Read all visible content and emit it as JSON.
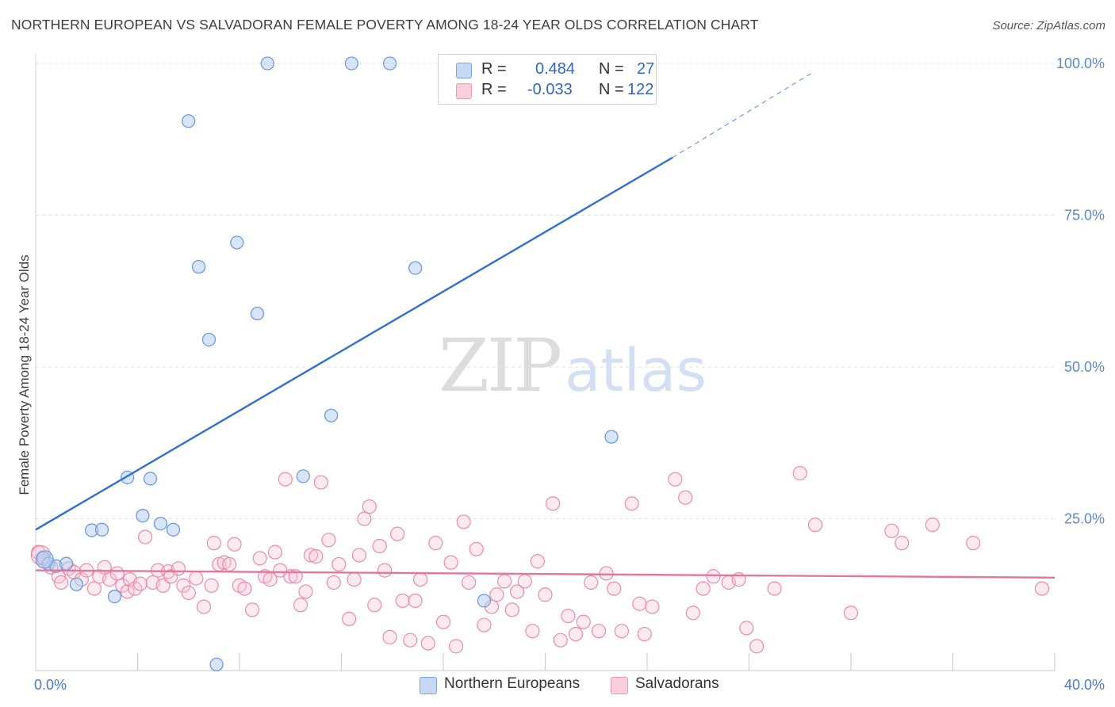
{
  "title": "NORTHERN EUROPEAN VS SALVADORAN FEMALE POVERTY AMONG 18-24 YEAR OLDS CORRELATION CHART",
  "source": "Source: ZipAtlas.com",
  "watermark": {
    "zip": "ZIP",
    "atlas": "atlas"
  },
  "colors": {
    "blue_fill": "#b8d0f2",
    "blue_stroke": "#6f9ad8",
    "blue_line": "#2f6fcf",
    "pink_fill": "#f8c3d3",
    "pink_stroke": "#e98aa8",
    "pink_line": "#e4769c"
  },
  "legend": {
    "r_label": "R =",
    "n_label": "N =",
    "series": [
      {
        "r": "0.484",
        "n": "27"
      },
      {
        "r": "-0.033",
        "n": "122"
      }
    ]
  },
  "bottom_legend": [
    "Northern Europeans",
    "Salvadorans"
  ],
  "chart_data": {
    "type": "scatter",
    "title": "NORTHERN EUROPEAN VS SALVADORAN FEMALE POVERTY AMONG 18-24 YEAR OLDS CORRELATION CHART",
    "xlabel": "",
    "ylabel": "Female Poverty Among 18-24 Year Olds",
    "xlim": [
      0,
      40
    ],
    "ylim": [
      0,
      100
    ],
    "x_tick_labels": [
      "0.0%",
      "40.0%"
    ],
    "y_tick_labels": [
      "25.0%",
      "50.0%",
      "75.0%",
      "100.0%"
    ],
    "y_ticks": [
      25,
      50,
      75,
      100
    ],
    "grid": true,
    "legend_position": "top-center",
    "series": [
      {
        "name": "Northern Europeans",
        "color": "#6f9ad8",
        "r": 0.484,
        "n": 27,
        "trend": {
          "x": [
            0,
            25
          ],
          "y": [
            23.2,
            84.5
          ],
          "dashed_to": [
            30.5,
            98.5
          ]
        },
        "points": [
          [
            0.3,
            18.5
          ],
          [
            0.5,
            17.6
          ],
          [
            0.8,
            17.2
          ],
          [
            1.2,
            17.6
          ],
          [
            1.6,
            14.2
          ],
          [
            2.2,
            23.1
          ],
          [
            2.6,
            23.2
          ],
          [
            3.1,
            12.2
          ],
          [
            3.6,
            31.8
          ],
          [
            4.2,
            25.5
          ],
          [
            4.5,
            31.6
          ],
          [
            4.9,
            24.2
          ],
          [
            5.4,
            23.2
          ],
          [
            6.0,
            90.5
          ],
          [
            6.4,
            66.5
          ],
          [
            6.8,
            54.5
          ],
          [
            7.1,
            1.0
          ],
          [
            7.9,
            70.5
          ],
          [
            8.7,
            58.8
          ],
          [
            9.1,
            100
          ],
          [
            10.5,
            32.0
          ],
          [
            11.6,
            42.0
          ],
          [
            12.4,
            100
          ],
          [
            13.9,
            100
          ],
          [
            14.9,
            66.3
          ],
          [
            17.6,
            11.5
          ],
          [
            22.6,
            38.5
          ]
        ]
      },
      {
        "name": "Salvadorans",
        "color": "#e98aa8",
        "r": -0.033,
        "n": 122,
        "trend": {
          "x": [
            0,
            40
          ],
          "y": [
            16.5,
            15.3
          ]
        },
        "points": [
          [
            0.1,
            19.5
          ],
          [
            0.3,
            18.0
          ],
          [
            0.6,
            17.0
          ],
          [
            0.9,
            15.5
          ],
          [
            1.0,
            14.5
          ],
          [
            1.3,
            16.8
          ],
          [
            1.5,
            16.2
          ],
          [
            1.8,
            15.0
          ],
          [
            2.0,
            16.5
          ],
          [
            2.3,
            13.5
          ],
          [
            2.5,
            15.5
          ],
          [
            2.7,
            17.0
          ],
          [
            2.9,
            15.0
          ],
          [
            3.2,
            16.0
          ],
          [
            3.4,
            14.0
          ],
          [
            3.6,
            13.0
          ],
          [
            3.7,
            15.0
          ],
          [
            3.9,
            13.5
          ],
          [
            4.1,
            14.3
          ],
          [
            4.3,
            22.0
          ],
          [
            4.6,
            14.5
          ],
          [
            4.8,
            16.5
          ],
          [
            5.0,
            14.0
          ],
          [
            5.2,
            16.3
          ],
          [
            5.3,
            15.5
          ],
          [
            5.6,
            16.8
          ],
          [
            5.8,
            14.0
          ],
          [
            6.0,
            12.8
          ],
          [
            6.3,
            15.2
          ],
          [
            6.6,
            10.5
          ],
          [
            6.9,
            14.0
          ],
          [
            7.0,
            21.0
          ],
          [
            7.2,
            17.5
          ],
          [
            7.4,
            17.8
          ],
          [
            7.6,
            17.5
          ],
          [
            7.8,
            20.8
          ],
          [
            8.0,
            14.0
          ],
          [
            8.2,
            13.5
          ],
          [
            8.5,
            10.0
          ],
          [
            8.8,
            18.5
          ],
          [
            9.0,
            15.5
          ],
          [
            9.2,
            15.0
          ],
          [
            9.4,
            19.5
          ],
          [
            9.6,
            16.5
          ],
          [
            9.8,
            31.5
          ],
          [
            10.0,
            15.5
          ],
          [
            10.2,
            15.5
          ],
          [
            10.4,
            10.8
          ],
          [
            10.6,
            13.0
          ],
          [
            10.8,
            19.0
          ],
          [
            11.0,
            18.8
          ],
          [
            11.2,
            31.0
          ],
          [
            11.5,
            21.5
          ],
          [
            11.7,
            14.5
          ],
          [
            11.9,
            17.5
          ],
          [
            12.3,
            8.5
          ],
          [
            12.5,
            15.0
          ],
          [
            12.7,
            19.0
          ],
          [
            12.9,
            25.0
          ],
          [
            13.1,
            27.0
          ],
          [
            13.3,
            10.8
          ],
          [
            13.5,
            20.5
          ],
          [
            13.7,
            16.5
          ],
          [
            13.9,
            5.5
          ],
          [
            14.2,
            22.5
          ],
          [
            14.4,
            11.5
          ],
          [
            14.7,
            5.0
          ],
          [
            14.9,
            11.5
          ],
          [
            15.1,
            15.0
          ],
          [
            15.4,
            4.5
          ],
          [
            15.7,
            21.0
          ],
          [
            16.0,
            8.0
          ],
          [
            16.3,
            17.8
          ],
          [
            16.5,
            4.0
          ],
          [
            16.8,
            24.5
          ],
          [
            17.0,
            14.5
          ],
          [
            17.3,
            20.0
          ],
          [
            17.6,
            7.5
          ],
          [
            17.9,
            10.5
          ],
          [
            18.1,
            12.5
          ],
          [
            18.4,
            14.7
          ],
          [
            18.7,
            10.0
          ],
          [
            18.9,
            13.0
          ],
          [
            19.2,
            14.7
          ],
          [
            19.5,
            6.5
          ],
          [
            19.7,
            18.0
          ],
          [
            20.0,
            12.5
          ],
          [
            20.3,
            27.5
          ],
          [
            20.6,
            5.0
          ],
          [
            20.9,
            9.0
          ],
          [
            21.2,
            6.0
          ],
          [
            21.5,
            8.0
          ],
          [
            21.8,
            14.5
          ],
          [
            22.1,
            6.5
          ],
          [
            22.4,
            16.0
          ],
          [
            22.7,
            13.5
          ],
          [
            23.0,
            6.5
          ],
          [
            23.4,
            27.5
          ],
          [
            23.7,
            11.0
          ],
          [
            23.9,
            6.0
          ],
          [
            24.2,
            10.5
          ],
          [
            25.1,
            31.5
          ],
          [
            25.5,
            28.5
          ],
          [
            25.8,
            9.5
          ],
          [
            26.2,
            13.5
          ],
          [
            26.6,
            15.5
          ],
          [
            27.2,
            14.5
          ],
          [
            27.6,
            15.0
          ],
          [
            27.9,
            7.0
          ],
          [
            28.3,
            4.0
          ],
          [
            29.0,
            13.5
          ],
          [
            30.0,
            32.5
          ],
          [
            30.6,
            24.0
          ],
          [
            32.0,
            9.5
          ],
          [
            33.6,
            23.0
          ],
          [
            34.0,
            21.0
          ],
          [
            35.2,
            24.0
          ],
          [
            36.8,
            21.0
          ],
          [
            39.5,
            13.5
          ]
        ]
      }
    ]
  }
}
